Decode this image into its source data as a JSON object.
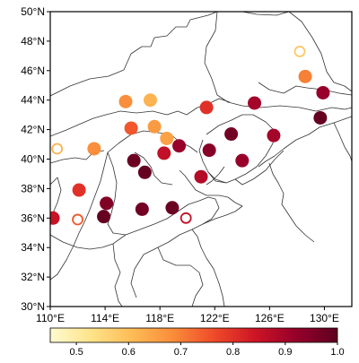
{
  "map": {
    "lon_range": [
      110,
      132
    ],
    "lat_range": [
      30,
      50
    ],
    "x_ticks": [
      {
        "value": 110,
        "label": "110°E"
      },
      {
        "value": 114,
        "label": "114°E"
      },
      {
        "value": 118,
        "label": "118°E"
      },
      {
        "value": 122,
        "label": "122°E"
      },
      {
        "value": 126,
        "label": "126°E"
      },
      {
        "value": 130,
        "label": "130°E"
      }
    ],
    "y_ticks": [
      {
        "value": 30,
        "label": "30°N"
      },
      {
        "value": 32,
        "label": "32°N"
      },
      {
        "value": 34,
        "label": "34°N"
      },
      {
        "value": 36,
        "label": "36°N"
      },
      {
        "value": 38,
        "label": "38°N"
      },
      {
        "value": 40,
        "label": "40°N"
      },
      {
        "value": 42,
        "label": "42°N"
      },
      {
        "value": 44,
        "label": "44°N"
      },
      {
        "value": 46,
        "label": "46°N"
      },
      {
        "value": 48,
        "label": "48°N"
      },
      {
        "value": 50,
        "label": "50°N"
      }
    ]
  },
  "colorbar": {
    "min": 0.45,
    "max": 1.0,
    "ticks": [
      {
        "value": 0.5,
        "label": "0.5"
      },
      {
        "value": 0.6,
        "label": "0.6"
      },
      {
        "value": 0.7,
        "label": "0.7"
      },
      {
        "value": 0.8,
        "label": "0.8"
      },
      {
        "value": 0.9,
        "label": "0.9"
      },
      {
        "value": 1.0,
        "label": "1.0"
      }
    ],
    "colors": [
      "#fffbd0",
      "#fde38a",
      "#fdbb55",
      "#f98c3a",
      "#ef4a29",
      "#cd1426",
      "#95002a",
      "#5e0020"
    ]
  },
  "chart_data": {
    "type": "scatter",
    "x_unit": "°E",
    "y_unit": "°N",
    "filled_stations": [
      {
        "lon": 110.2,
        "lat": 36.0,
        "value": 0.85
      },
      {
        "lon": 112.1,
        "lat": 37.9,
        "value": 0.8
      },
      {
        "lon": 113.2,
        "lat": 40.7,
        "value": 0.68
      },
      {
        "lon": 115.5,
        "lat": 43.9,
        "value": 0.68
      },
      {
        "lon": 115.9,
        "lat": 42.1,
        "value": 0.75
      },
      {
        "lon": 117.3,
        "lat": 44.0,
        "value": 0.62
      },
      {
        "lon": 117.6,
        "lat": 42.2,
        "value": 0.66
      },
      {
        "lon": 118.5,
        "lat": 41.4,
        "value": 0.65
      },
      {
        "lon": 121.4,
        "lat": 43.5,
        "value": 0.8
      },
      {
        "lon": 124.9,
        "lat": 43.8,
        "value": 0.9
      },
      {
        "lon": 128.6,
        "lat": 45.6,
        "value": 0.7
      },
      {
        "lon": 129.9,
        "lat": 44.5,
        "value": 0.92
      },
      {
        "lon": 129.7,
        "lat": 42.8,
        "value": 0.99
      },
      {
        "lon": 126.3,
        "lat": 41.6,
        "value": 0.9
      },
      {
        "lon": 123.2,
        "lat": 41.7,
        "value": 0.97
      },
      {
        "lon": 121.6,
        "lat": 40.6,
        "value": 0.94
      },
      {
        "lon": 124.0,
        "lat": 39.9,
        "value": 0.92
      },
      {
        "lon": 119.4,
        "lat": 40.9,
        "value": 0.92
      },
      {
        "lon": 118.3,
        "lat": 40.4,
        "value": 0.86
      },
      {
        "lon": 116.1,
        "lat": 39.9,
        "value": 0.98
      },
      {
        "lon": 116.9,
        "lat": 39.1,
        "value": 0.99
      },
      {
        "lon": 121.0,
        "lat": 38.8,
        "value": 0.88
      },
      {
        "lon": 114.1,
        "lat": 37.0,
        "value": 0.95
      },
      {
        "lon": 113.9,
        "lat": 36.1,
        "value": 0.99
      },
      {
        "lon": 116.7,
        "lat": 36.6,
        "value": 0.97
      },
      {
        "lon": 118.9,
        "lat": 36.7,
        "value": 0.98
      }
    ],
    "open_stations": [
      {
        "lon": 110.5,
        "lat": 40.7,
        "value": 0.62
      },
      {
        "lon": 112.0,
        "lat": 35.9,
        "value": 0.75
      },
      {
        "lon": 119.9,
        "lat": 36.0,
        "value": 0.85
      },
      {
        "lon": 128.2,
        "lat": 47.3,
        "value": 0.58
      }
    ]
  }
}
